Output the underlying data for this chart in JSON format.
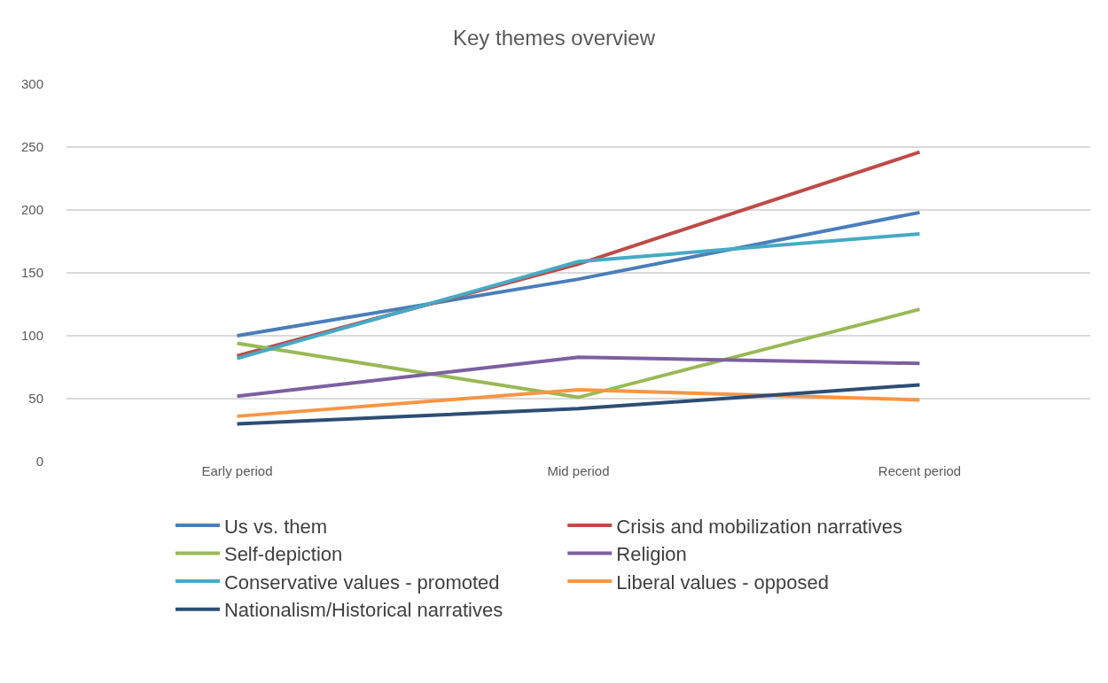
{
  "chart_data": {
    "type": "line",
    "title": "Key themes overview",
    "categories": [
      "Early period",
      "Mid period",
      "Recent period"
    ],
    "series": [
      {
        "name": "Us vs. them",
        "color": "#4a7ebb",
        "values": [
          100,
          145,
          198
        ]
      },
      {
        "name": "Crisis and mobilization narratives",
        "color": "#be4b48",
        "values": [
          84,
          157,
          246
        ]
      },
      {
        "name": "Self-depiction",
        "color": "#98b954",
        "values": [
          94,
          51,
          121
        ]
      },
      {
        "name": "Religion",
        "color": "#7d5fa0",
        "values": [
          52,
          83,
          78
        ]
      },
      {
        "name": "Conservative values - promoted",
        "color": "#46aac5",
        "values": [
          82,
          159,
          181
        ]
      },
      {
        "name": "Liberal values - opposed",
        "color": "#f79646",
        "values": [
          36,
          57,
          49
        ]
      },
      {
        "name": "Nationalism/Historical narratives",
        "color": "#2c4d75",
        "values": [
          30,
          42,
          61
        ]
      }
    ],
    "ylim": [
      0,
      300
    ],
    "yticks": [
      0,
      50,
      100,
      150,
      200,
      250,
      300
    ],
    "grid": "y",
    "legend": "bottom",
    "marker": "none",
    "line_style": "solid"
  }
}
